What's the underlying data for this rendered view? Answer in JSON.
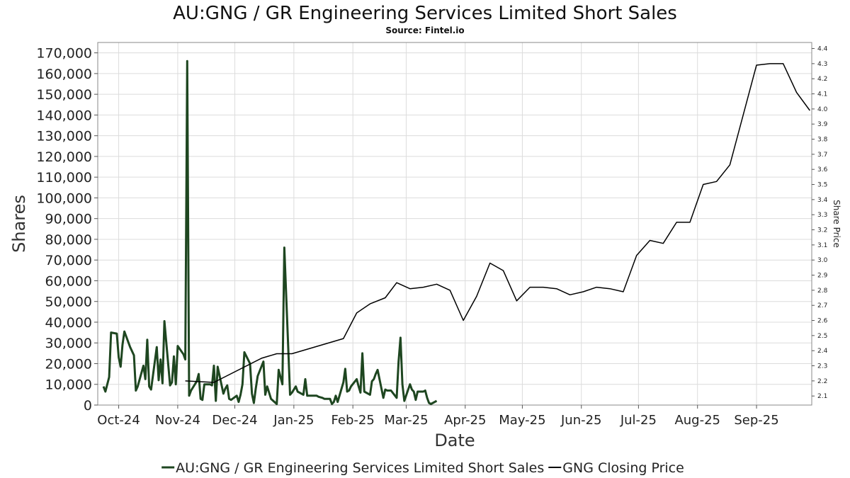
{
  "chart_data": {
    "type": "line",
    "title": "AU:GNG / GR Engineering Services Limited Short Sales",
    "subtitle": "Source: Fintel.io",
    "xlabel": "Date",
    "ylabel": "Shares",
    "y2label": "Share Price",
    "ylim": [
      0,
      175000
    ],
    "y2lim": [
      2.04,
      4.44
    ],
    "xlim": [
      "2024-09-20",
      "2025-09-30"
    ],
    "grid": true,
    "legend_position": "bottom",
    "x_ticks": [
      {
        "date": "2024-10-01",
        "label": "Oct-24"
      },
      {
        "date": "2024-11-01",
        "label": "Nov-24"
      },
      {
        "date": "2024-12-01",
        "label": "Dec-24"
      },
      {
        "date": "2025-01-01",
        "label": "Jan-25"
      },
      {
        "date": "2025-02-01",
        "label": "Feb-25"
      },
      {
        "date": "2025-03-01",
        "label": "Mar-25"
      },
      {
        "date": "2025-04-01",
        "label": "Apr-25"
      },
      {
        "date": "2025-05-01",
        "label": "May-25"
      },
      {
        "date": "2025-06-01",
        "label": "Jun-25"
      },
      {
        "date": "2025-07-01",
        "label": "Jul-25"
      },
      {
        "date": "2025-08-01",
        "label": "Aug-25"
      },
      {
        "date": "2025-09-01",
        "label": "Sep-25"
      }
    ],
    "y_ticks": [
      {
        "value": 0,
        "label": "0"
      },
      {
        "value": 10000,
        "label": "10,000"
      },
      {
        "value": 20000,
        "label": "20,000"
      },
      {
        "value": 30000,
        "label": "30,000"
      },
      {
        "value": 40000,
        "label": "40,000"
      },
      {
        "value": 50000,
        "label": "50,000"
      },
      {
        "value": 60000,
        "label": "60,000"
      },
      {
        "value": 70000,
        "label": "70,000"
      },
      {
        "value": 80000,
        "label": "80,000"
      },
      {
        "value": 90000,
        "label": "90,000"
      },
      {
        "value": 100000,
        "label": "100,000"
      },
      {
        "value": 110000,
        "label": "110,000"
      },
      {
        "value": 120000,
        "label": "120,000"
      },
      {
        "value": 130000,
        "label": "130,000"
      },
      {
        "value": 140000,
        "label": "140,000"
      },
      {
        "value": 150000,
        "label": "150,000"
      },
      {
        "value": 160000,
        "label": "160,000"
      },
      {
        "value": 170000,
        "label": "170,000"
      }
    ],
    "y2_ticks": [
      {
        "value": 2.1,
        "label": "2.1"
      },
      {
        "value": 2.2,
        "label": "2.2"
      },
      {
        "value": 2.3,
        "label": "2.3"
      },
      {
        "value": 2.4,
        "label": "2.4"
      },
      {
        "value": 2.5,
        "label": "2.5"
      },
      {
        "value": 2.6,
        "label": "2.6"
      },
      {
        "value": 2.7,
        "label": "2.7"
      },
      {
        "value": 2.8,
        "label": "2.8"
      },
      {
        "value": 2.9,
        "label": "2.9"
      },
      {
        "value": 3.0,
        "label": "3.0"
      },
      {
        "value": 3.1,
        "label": "3.1"
      },
      {
        "value": 3.2,
        "label": "3.2"
      },
      {
        "value": 3.3,
        "label": "3.3"
      },
      {
        "value": 3.4,
        "label": "3.4"
      },
      {
        "value": 3.5,
        "label": "3.5"
      },
      {
        "value": 3.6,
        "label": "3.6"
      },
      {
        "value": 3.7,
        "label": "3.7"
      },
      {
        "value": 3.8,
        "label": "3.8"
      },
      {
        "value": 3.9,
        "label": "3.9"
      },
      {
        "value": 4.0,
        "label": "4.0"
      },
      {
        "value": 4.1,
        "label": "4.1"
      },
      {
        "value": 4.2,
        "label": "4.2"
      },
      {
        "value": 4.3,
        "label": "4.3"
      },
      {
        "value": 4.4,
        "label": "4.4"
      }
    ],
    "series": [
      {
        "name": "AU:GNG / GR Engineering Services Limited Short Sales",
        "axis": "left",
        "color": "#1e4620",
        "line_width": 3,
        "points": [
          [
            "2024-09-23",
            9000
          ],
          [
            "2024-09-24",
            6500
          ],
          [
            "2024-09-26",
            13500
          ],
          [
            "2024-09-27",
            35000
          ],
          [
            "2024-09-30",
            34500
          ],
          [
            "2024-10-01",
            23000
          ],
          [
            "2024-10-02",
            18500
          ],
          [
            "2024-10-03",
            29000
          ],
          [
            "2024-10-04",
            35500
          ],
          [
            "2024-10-07",
            28000
          ],
          [
            "2024-10-09",
            24000
          ],
          [
            "2024-10-10",
            7000
          ],
          [
            "2024-10-11",
            9000
          ],
          [
            "2024-10-14",
            19000
          ],
          [
            "2024-10-15",
            12500
          ],
          [
            "2024-10-16",
            31500
          ],
          [
            "2024-10-17",
            9000
          ],
          [
            "2024-10-18",
            7500
          ],
          [
            "2024-10-21",
            28000
          ],
          [
            "2024-10-22",
            12000
          ],
          [
            "2024-10-23",
            22000
          ],
          [
            "2024-10-24",
            10500
          ],
          [
            "2024-10-25",
            40500
          ],
          [
            "2024-10-28",
            9500
          ],
          [
            "2024-10-29",
            11000
          ],
          [
            "2024-10-30",
            23500
          ],
          [
            "2024-10-31",
            10000
          ],
          [
            "2024-11-01",
            28500
          ],
          [
            "2024-11-04",
            24500
          ],
          [
            "2024-11-05",
            22000
          ],
          [
            "2024-11-06",
            166000
          ],
          [
            "2024-11-07",
            4500
          ],
          [
            "2024-11-08",
            7000
          ],
          [
            "2024-11-11",
            11500
          ],
          [
            "2024-11-12",
            15000
          ],
          [
            "2024-11-13",
            3000
          ],
          [
            "2024-11-14",
            2500
          ],
          [
            "2024-11-15",
            10000
          ],
          [
            "2024-11-18",
            10000
          ],
          [
            "2024-11-19",
            9500
          ],
          [
            "2024-11-20",
            19000
          ],
          [
            "2024-11-21",
            2000
          ],
          [
            "2024-11-22",
            18500
          ],
          [
            "2024-11-25",
            5500
          ],
          [
            "2024-11-26",
            8000
          ],
          [
            "2024-11-27",
            9500
          ],
          [
            "2024-11-28",
            3000
          ],
          [
            "2024-11-29",
            2500
          ],
          [
            "2024-12-02",
            4500
          ],
          [
            "2024-12-03",
            1500
          ],
          [
            "2024-12-04",
            5000
          ],
          [
            "2024-12-05",
            10000
          ],
          [
            "2024-12-06",
            25500
          ],
          [
            "2024-12-09",
            20000
          ],
          [
            "2024-12-10",
            5500
          ],
          [
            "2024-12-11",
            1000
          ],
          [
            "2024-12-12",
            8000
          ],
          [
            "2024-12-13",
            14000
          ],
          [
            "2024-12-16",
            21000
          ],
          [
            "2024-12-17",
            5000
          ],
          [
            "2024-12-18",
            9000
          ],
          [
            "2024-12-19",
            6000
          ],
          [
            "2024-12-20",
            3000
          ],
          [
            "2024-12-23",
            500
          ],
          [
            "2024-12-24",
            17000
          ],
          [
            "2024-12-26",
            10000
          ],
          [
            "2024-12-27",
            76000
          ],
          [
            "2024-12-30",
            5000
          ],
          [
            "2024-12-31",
            6000
          ],
          [
            "2025-01-02",
            9000
          ],
          [
            "2025-01-03",
            6500
          ],
          [
            "2025-01-06",
            5000
          ],
          [
            "2025-01-07",
            12500
          ],
          [
            "2025-01-08",
            4500
          ],
          [
            "2025-01-10",
            4500
          ],
          [
            "2025-01-13",
            4500
          ],
          [
            "2025-01-14",
            4000
          ],
          [
            "2025-01-16",
            3500
          ],
          [
            "2025-01-17",
            3000
          ],
          [
            "2025-01-20",
            3000
          ],
          [
            "2025-01-21",
            500
          ],
          [
            "2025-01-22",
            1500
          ],
          [
            "2025-01-23",
            4500
          ],
          [
            "2025-01-24",
            1500
          ],
          [
            "2025-01-27",
            11000
          ],
          [
            "2025-01-28",
            17500
          ],
          [
            "2025-01-29",
            6500
          ],
          [
            "2025-01-30",
            7000
          ],
          [
            "2025-01-31",
            9000
          ],
          [
            "2025-02-03",
            12500
          ],
          [
            "2025-02-04",
            9000
          ],
          [
            "2025-02-05",
            6000
          ],
          [
            "2025-02-06",
            25000
          ],
          [
            "2025-02-07",
            6500
          ],
          [
            "2025-02-10",
            5000
          ],
          [
            "2025-02-11",
            11500
          ],
          [
            "2025-02-12",
            12500
          ],
          [
            "2025-02-13",
            15000
          ],
          [
            "2025-02-14",
            17000
          ],
          [
            "2025-02-17",
            3500
          ],
          [
            "2025-02-18",
            7500
          ],
          [
            "2025-02-19",
            7000
          ],
          [
            "2025-02-20",
            7000
          ],
          [
            "2025-02-21",
            7000
          ],
          [
            "2025-02-24",
            3500
          ],
          [
            "2025-02-25",
            21000
          ],
          [
            "2025-02-26",
            32500
          ],
          [
            "2025-02-27",
            10000
          ],
          [
            "2025-02-28",
            2000
          ],
          [
            "2025-03-03",
            10000
          ],
          [
            "2025-03-04",
            7500
          ],
          [
            "2025-03-05",
            6500
          ],
          [
            "2025-03-06",
            2500
          ],
          [
            "2025-03-07",
            6500
          ],
          [
            "2025-03-10",
            6500
          ],
          [
            "2025-03-11",
            7000
          ],
          [
            "2025-03-12",
            3500
          ],
          [
            "2025-03-13",
            1000
          ],
          [
            "2025-03-14",
            500
          ],
          [
            "2025-03-17",
            2000
          ]
        ]
      },
      {
        "name": "GNG Closing Price",
        "axis": "right",
        "color": "#000000",
        "line_width": 1.5,
        "points": [
          [
            "2024-11-05",
            2.2
          ],
          [
            "2024-11-20",
            2.19
          ],
          [
            "2024-12-15",
            2.35
          ],
          [
            "2024-12-23",
            2.38
          ],
          [
            "2024-12-31",
            2.38
          ],
          [
            "2025-01-27",
            2.48
          ],
          [
            "2025-02-03",
            2.65
          ],
          [
            "2025-02-10",
            2.71
          ],
          [
            "2025-02-18",
            2.75
          ],
          [
            "2025-02-24",
            2.85
          ],
          [
            "2025-03-03",
            2.81
          ],
          [
            "2025-03-10",
            2.82
          ],
          [
            "2025-03-17",
            2.84
          ],
          [
            "2025-03-24",
            2.8
          ],
          [
            "2025-03-31",
            2.6
          ],
          [
            "2025-04-07",
            2.76
          ],
          [
            "2025-04-14",
            2.98
          ],
          [
            "2025-04-21",
            2.93
          ],
          [
            "2025-04-28",
            2.73
          ],
          [
            "2025-05-05",
            2.82
          ],
          [
            "2025-05-12",
            2.82
          ],
          [
            "2025-05-19",
            2.81
          ],
          [
            "2025-05-26",
            2.77
          ],
          [
            "2025-06-02",
            2.79
          ],
          [
            "2025-06-09",
            2.82
          ],
          [
            "2025-06-16",
            2.81
          ],
          [
            "2025-06-23",
            2.79
          ],
          [
            "2025-06-30",
            3.03
          ],
          [
            "2025-07-07",
            3.13
          ],
          [
            "2025-07-14",
            3.11
          ],
          [
            "2025-07-21",
            3.25
          ],
          [
            "2025-07-28",
            3.25
          ],
          [
            "2025-08-04",
            3.5
          ],
          [
            "2025-08-11",
            3.52
          ],
          [
            "2025-08-18",
            3.63
          ],
          [
            "2025-08-25",
            3.96
          ],
          [
            "2025-09-01",
            4.29
          ],
          [
            "2025-09-08",
            4.3
          ],
          [
            "2025-09-15",
            4.3
          ],
          [
            "2025-09-22",
            4.11
          ],
          [
            "2025-09-29",
            3.99
          ]
        ]
      }
    ]
  }
}
